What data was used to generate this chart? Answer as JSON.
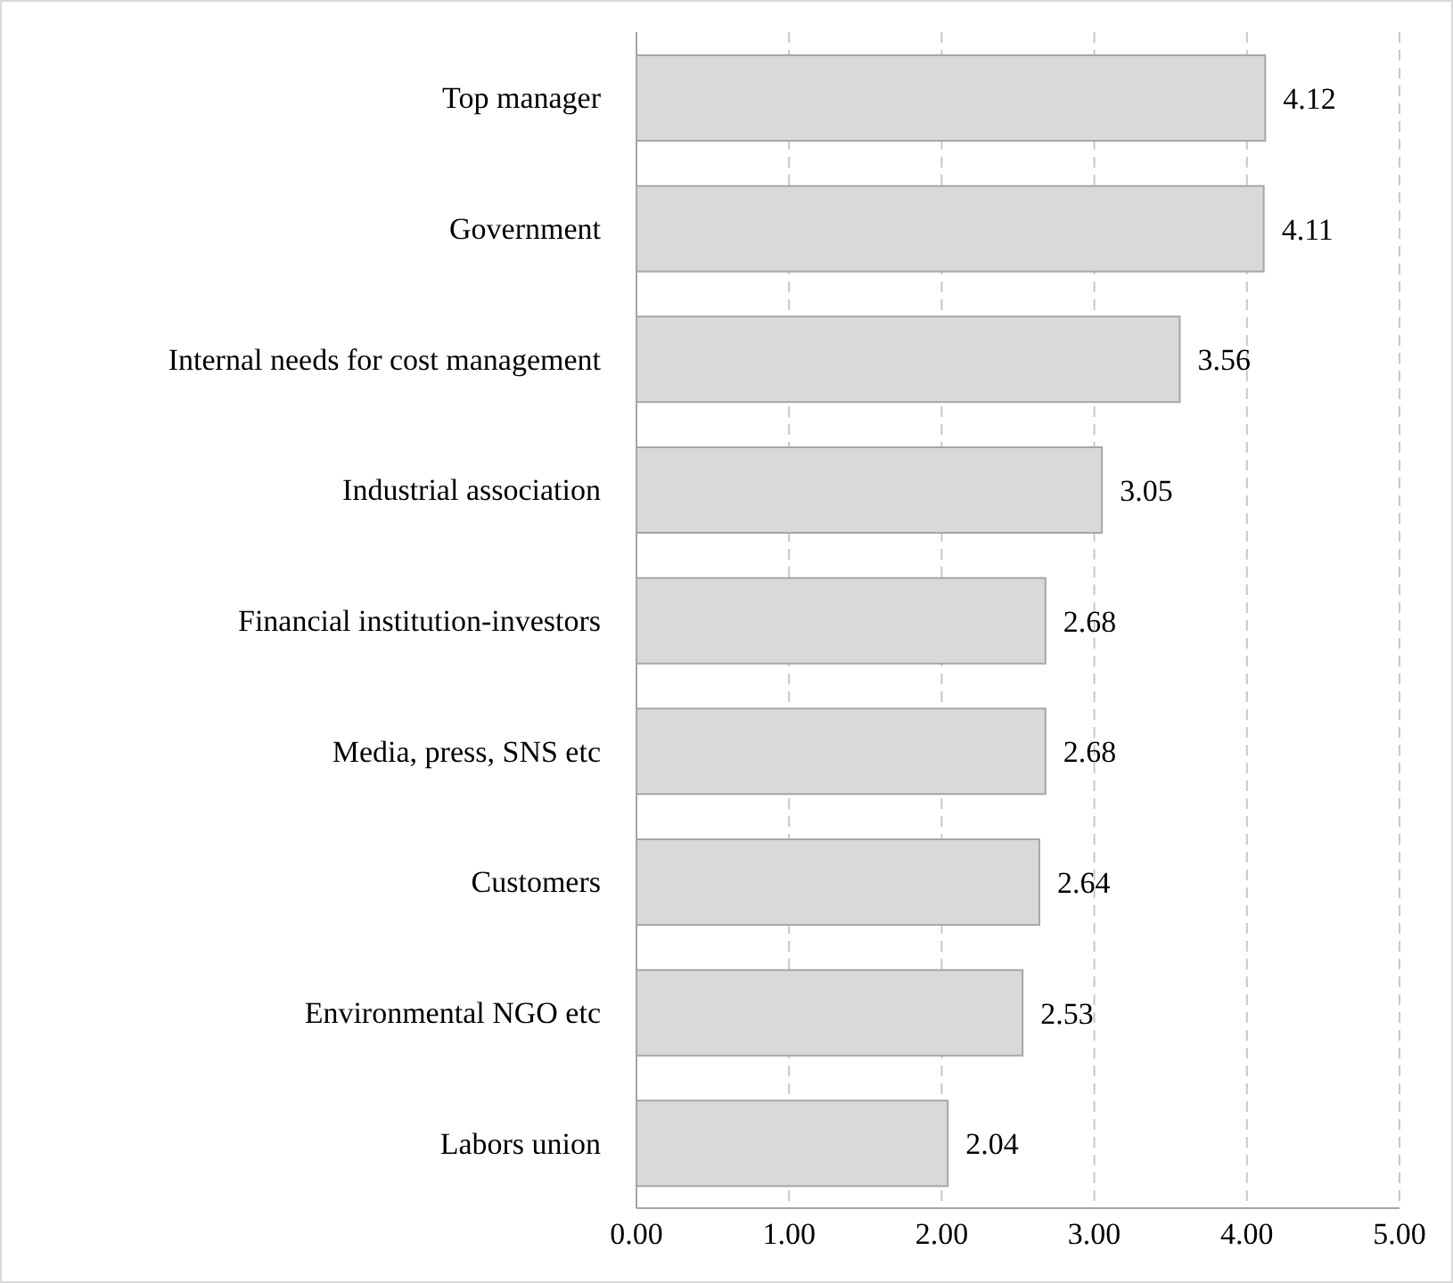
{
  "chart_data": {
    "type": "bar",
    "orientation": "horizontal",
    "categories": [
      "Top manager",
      "Government",
      "Internal needs for cost management",
      "Industrial association",
      "Financial institution-investors",
      "Media, press, SNS etc",
      "Customers",
      "Environmental NGO etc",
      "Labors union"
    ],
    "values": [
      4.12,
      4.11,
      3.56,
      3.05,
      2.68,
      2.68,
      2.64,
      2.53,
      2.04
    ],
    "color": "#d9d9d9",
    "xlim": [
      0,
      5
    ],
    "xticks": [
      {
        "value": 0,
        "label": "0.00"
      },
      {
        "value": 1,
        "label": "1.00"
      },
      {
        "value": 2,
        "label": "2.00"
      },
      {
        "value": 3,
        "label": "3.00"
      },
      {
        "value": 4,
        "label": "4.00"
      },
      {
        "value": 5,
        "label": "5.00"
      }
    ],
    "grid": "x",
    "data_labels": true
  }
}
